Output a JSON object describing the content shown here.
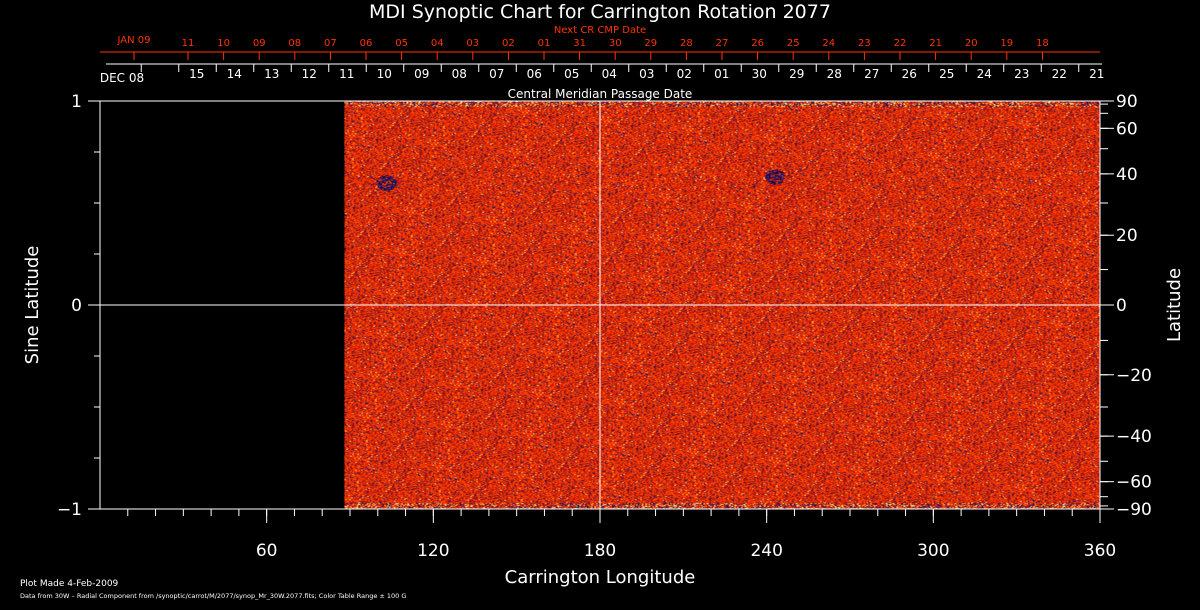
{
  "chart_data": {
    "type": "heatmap",
    "title": "MDI Synoptic Chart for Carrington Rotation 2077",
    "xlabel": "Carrington Longitude",
    "ylabel_left": "Sine Latitude",
    "ylabel_right": "Latitude",
    "xlim": [
      0,
      360
    ],
    "ylim": [
      -1,
      1
    ],
    "x_ticks": [
      "60",
      "120",
      "180",
      "240",
      "300",
      "360"
    ],
    "y_ticks_left": [
      "1",
      "0",
      "−1"
    ],
    "y_ticks_right": [
      "90",
      "60",
      "40",
      "20",
      "0",
      "−20",
      "−40",
      "−60",
      "−90"
    ],
    "data_start_longitude": 88,
    "central_meridian_longitude": 180,
    "colorscale": [
      "#000033",
      "#1a1a80",
      "#b31500",
      "#ff3300",
      "#ff5a00",
      "#ff8a10",
      "#ffd040",
      "#ffffc8"
    ],
    "color_table_range_gauss": 100,
    "features": [
      {
        "label": "negative polarity cluster",
        "longitude": 103,
        "sine_latitude": 0.6
      },
      {
        "label": "negative polarity cluster",
        "longitude": 243,
        "sine_latitude": 0.63
      }
    ],
    "top_axis": {
      "caption": "Central Meridian Passage Date",
      "start_label": "DEC 08",
      "dates": [
        "15",
        "14",
        "13",
        "12",
        "11",
        "10",
        "09",
        "08",
        "07",
        "06",
        "05",
        "04",
        "03",
        "02",
        "01",
        "30",
        "29",
        "28",
        "27",
        "26",
        "25",
        "24",
        "23",
        "22",
        "21"
      ]
    },
    "next_cr_axis": {
      "caption": "Next CR CMP Date",
      "start_label": "JAN 09",
      "dates": [
        "11",
        "10",
        "09",
        "08",
        "07",
        "06",
        "05",
        "04",
        "03",
        "02",
        "01",
        "31",
        "30",
        "29",
        "28",
        "27",
        "26",
        "25",
        "24",
        "23",
        "22",
        "21",
        "20",
        "19",
        "18"
      ]
    }
  },
  "footer": {
    "plot_made": "Plot Made  4-Feb-2009",
    "source": "Data from 30W – Radial Component from /synoptic/carrot/M/2077/synop_Mr_30W.2077.fits; Color Table Range ± 100 G"
  },
  "colors": {
    "axis": "#ffffff",
    "accent": "#ff3300",
    "background": "#000000"
  }
}
